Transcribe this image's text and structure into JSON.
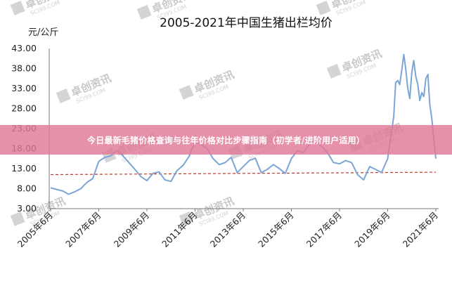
{
  "banner": {
    "text": "今日最新毛猪价格查询与往年价格对比步骤指南（初学者/进阶用户适用）",
    "color": "#e27896"
  },
  "watermark": {
    "text": "卓创资讯",
    "sub": "SCI99.COM"
  },
  "chart_data": {
    "type": "line",
    "title": "2005-2021年中国生猪出栏均价",
    "ylabel": "元/公斤",
    "xlabel": "",
    "ylim": [
      3.0,
      43.0
    ],
    "yticks": [
      "43.00",
      "38.00",
      "33.00",
      "28.00",
      "23.00",
      "18.00",
      "13.00",
      "8.00",
      "3.00"
    ],
    "xticks": [
      "2005年6月",
      "2007年6月",
      "2009年6月",
      "2011年6月",
      "2013年6月",
      "2015年6月",
      "2017年6月",
      "2019年6月",
      "2021年6月"
    ],
    "line_color": "#7aa5d6",
    "reference_line": {
      "value": 11.5,
      "value_end": 12.1,
      "color": "#c0392b",
      "style": "dashed"
    },
    "grid": false,
    "series": [
      {
        "x": [
          "2005-06",
          "2005-09",
          "2005-12",
          "2006-03",
          "2006-06",
          "2006-09",
          "2006-12",
          "2007-03",
          "2007-06",
          "2007-09",
          "2007-12",
          "2008-03",
          "2008-06",
          "2008-09",
          "2008-12",
          "2009-03",
          "2009-06",
          "2009-09",
          "2009-12",
          "2010-03",
          "2010-06",
          "2010-09",
          "2010-12",
          "2011-03",
          "2011-06",
          "2011-09",
          "2011-12",
          "2012-03",
          "2012-06",
          "2012-09",
          "2012-12",
          "2013-03",
          "2013-06",
          "2013-09",
          "2013-12",
          "2014-03",
          "2014-06",
          "2014-09",
          "2014-12",
          "2015-03",
          "2015-06",
          "2015-09",
          "2015-12",
          "2016-03",
          "2016-06",
          "2016-09",
          "2016-12",
          "2017-03",
          "2017-06",
          "2017-09",
          "2017-12",
          "2018-03",
          "2018-06",
          "2018-09",
          "2018-12",
          "2019-03",
          "2019-06",
          "2019-09",
          "2019-10",
          "2019-11",
          "2019-12",
          "2020-01",
          "2020-02",
          "2020-03",
          "2020-04",
          "2020-05",
          "2020-06",
          "2020-07",
          "2020-08",
          "2020-09",
          "2020-10",
          "2020-11",
          "2020-12",
          "2021-01",
          "2021-02",
          "2021-03",
          "2021-04",
          "2021-05",
          "2021-06"
        ],
        "values": [
          8.2,
          7.8,
          7.4,
          6.6,
          7.2,
          8.0,
          9.5,
          10.5,
          14.8,
          15.8,
          16.2,
          17.5,
          16.2,
          14.5,
          12.8,
          11.0,
          10.0,
          11.8,
          12.2,
          10.2,
          9.8,
          12.5,
          13.8,
          16.0,
          19.8,
          19.0,
          18.0,
          15.5,
          14.0,
          14.5,
          15.8,
          12.0,
          13.5,
          15.0,
          15.6,
          12.0,
          12.8,
          14.0,
          13.0,
          11.8,
          15.5,
          17.5,
          17.0,
          19.0,
          20.5,
          18.5,
          17.0,
          14.5,
          14.2,
          15.0,
          14.5,
          11.5,
          10.2,
          13.5,
          12.8,
          12.0,
          15.5,
          26.0,
          34.5,
          35.0,
          34.0,
          37.5,
          41.5,
          38.0,
          33.0,
          30.5,
          37.0,
          40.0,
          36.0,
          34.0,
          30.0,
          32.0,
          31.0,
          35.5,
          36.5,
          29.0,
          25.5,
          20.5,
          15.5
        ]
      }
    ]
  }
}
